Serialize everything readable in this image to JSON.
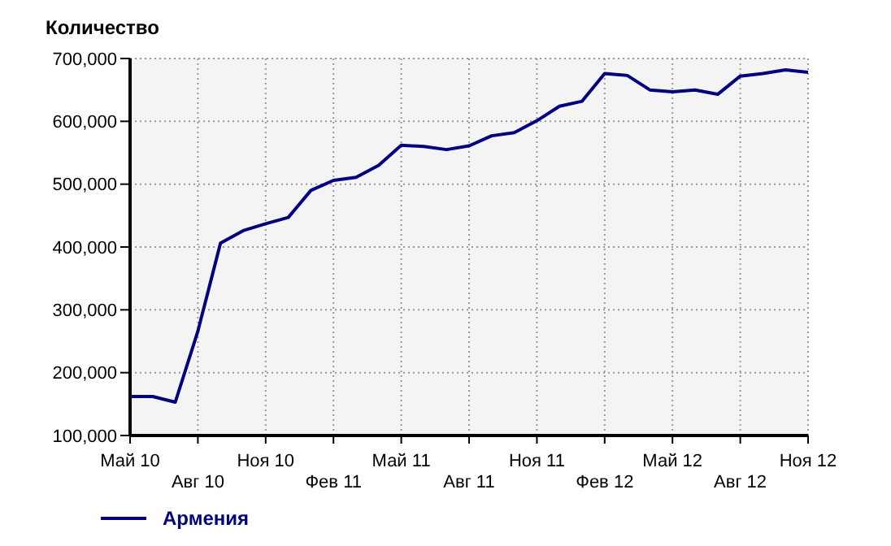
{
  "chart_data": {
    "type": "line",
    "ylabel": "Количество",
    "categories": [
      "Май 10",
      null,
      null,
      "Авг 10",
      null,
      null,
      "Ноя 10",
      null,
      null,
      "Фев 11",
      null,
      null,
      "Май 11",
      null,
      null,
      "Авг 11",
      null,
      null,
      "Ноя 11",
      null,
      null,
      "Фев 12",
      null,
      null,
      "Май 12",
      null,
      null,
      "Авг 12",
      null,
      null,
      "Ноя 12"
    ],
    "series": [
      {
        "name": "Армения",
        "color": "#000080",
        "values": [
          162000,
          162000,
          153000,
          266000,
          406000,
          426000,
          437000,
          447000,
          490000,
          506000,
          511000,
          530000,
          562000,
          560000,
          555000,
          561000,
          577000,
          582000,
          601000,
          624000,
          632000,
          676000,
          673000,
          650000,
          647000,
          650000,
          643000,
          672000,
          676000,
          682000,
          678000
        ]
      }
    ],
    "ylim": [
      100000,
      700000
    ],
    "yticks": [
      {
        "value": 100000,
        "label": "100,000"
      },
      {
        "value": 200000,
        "label": "200,000"
      },
      {
        "value": 300000,
        "label": "300,000"
      },
      {
        "value": 400000,
        "label": "400,000"
      },
      {
        "value": 500000,
        "label": "500,000"
      },
      {
        "value": 600000,
        "label": "600,000"
      },
      {
        "value": 700000,
        "label": "700,000"
      }
    ],
    "grid": true,
    "legend": "bottom left",
    "marker": "none",
    "line_style": "solid"
  }
}
